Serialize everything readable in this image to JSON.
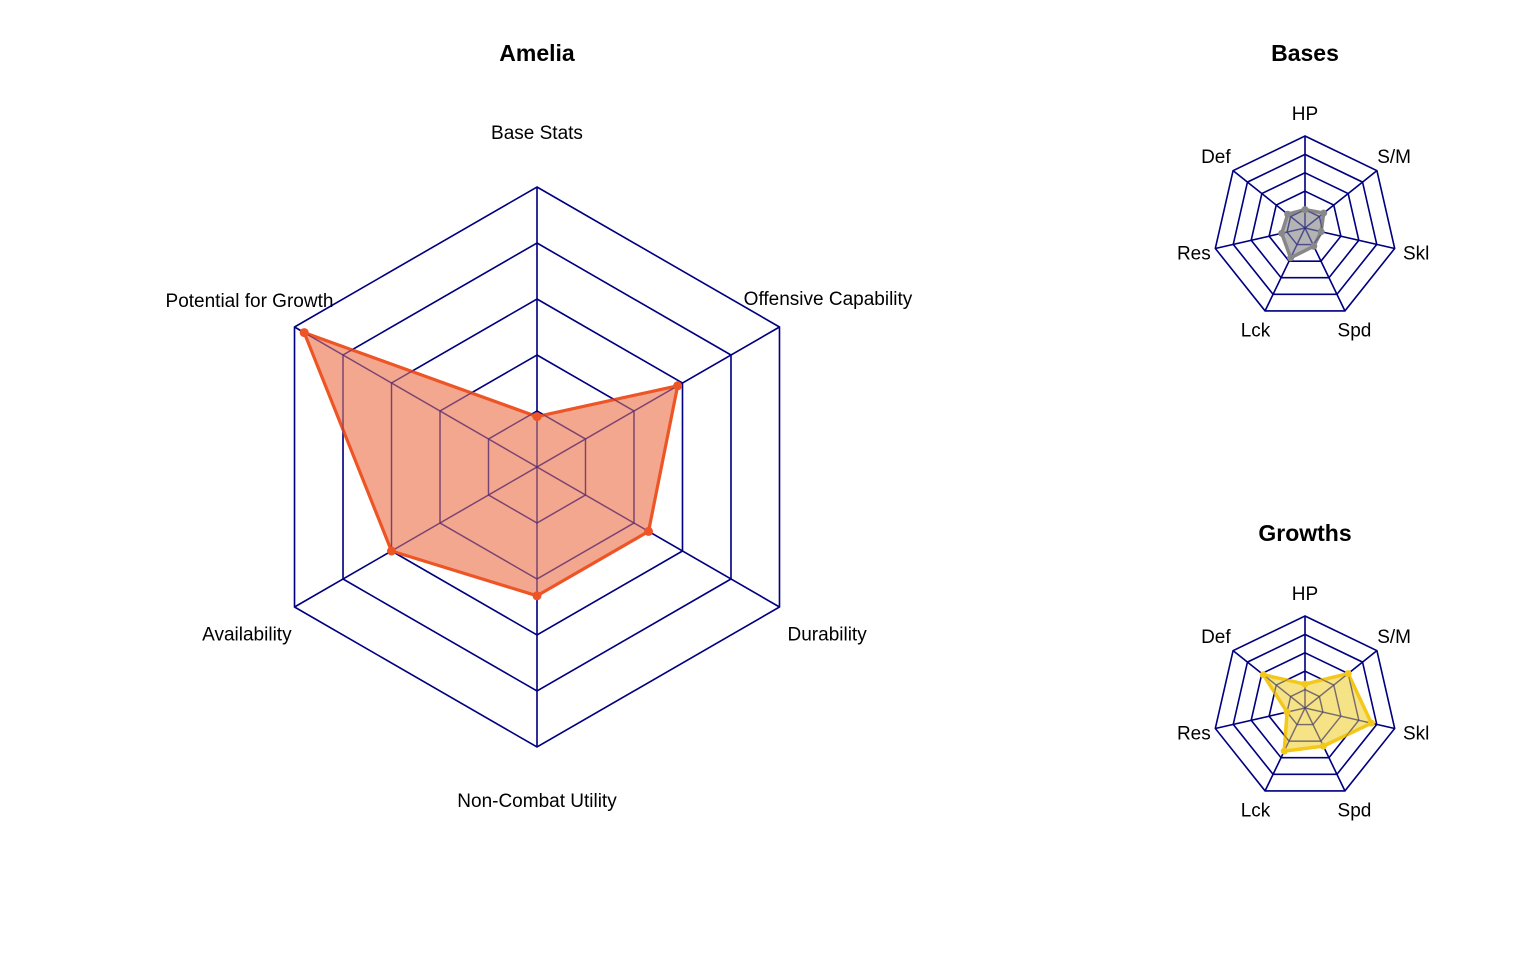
{
  "chart_data": [
    {
      "type": "radar",
      "title": "Amelia",
      "axes": [
        "Base Stats",
        "Offensive Capability",
        "Durability",
        "Non-Combat Utility",
        "Availability",
        "Potential for Growth"
      ],
      "range": [
        0,
        5
      ],
      "rings": 5,
      "values": [
        0.9,
        2.9,
        2.3,
        2.3,
        3.0,
        4.8
      ],
      "fill_color": "#f08a6a",
      "line_color": "#ee5526",
      "grid_color": "#000080"
    },
    {
      "type": "radar",
      "title": "Bases",
      "axes": [
        "HP",
        "S/M",
        "Skl",
        "Spd",
        "Lck",
        "Res",
        "Def"
      ],
      "range": [
        0,
        5
      ],
      "rings": 5,
      "values": [
        1.0,
        1.3,
        0.9,
        1.1,
        1.8,
        1.3,
        1.2
      ],
      "fill_color": "#9b9b9b",
      "line_color": "#888888",
      "grid_color": "#000080"
    },
    {
      "type": "radar",
      "title": "Growths",
      "axes": [
        "HP",
        "S/M",
        "Skl",
        "Spd",
        "Lck",
        "Res",
        "Def"
      ],
      "range": [
        0,
        5
      ],
      "rings": 5,
      "values": [
        1.3,
        3.0,
        3.7,
        2.3,
        2.6,
        1.0,
        2.9
      ],
      "fill_color": "#f2d95e",
      "line_color": "#f3c81a",
      "grid_color": "#000080"
    }
  ]
}
